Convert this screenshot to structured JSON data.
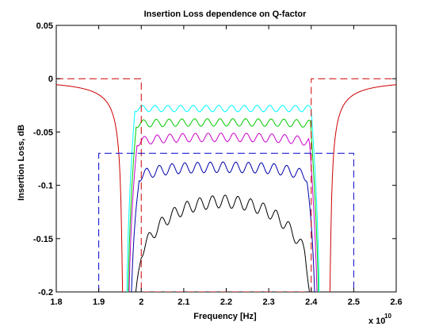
{
  "chart_data": {
    "type": "line",
    "title": "Insertion Loss dependence on Q-factor",
    "xlabel": "Frequency [Hz]",
    "ylabel": "Insertion Loss, dB",
    "x_multiplier": "x 10",
    "x_multiplier_exp": "10",
    "xlim": [
      1.8,
      2.6
    ],
    "ylim": [
      -0.2,
      0.05
    ],
    "x_ticks": [
      "1.8",
      "1.9",
      "2",
      "2.1",
      "2.2",
      "2.3",
      "2.4",
      "2.5",
      "2.6"
    ],
    "y_ticks": [
      "0.05",
      "0",
      "-0.05",
      "-0.1",
      "-0.15",
      "-0.2"
    ],
    "grid": false,
    "legend": "none",
    "series": [
      {
        "color": "#00ffff",
        "style": "solid",
        "passband_center": -0.028,
        "ripple_amp": 0.003,
        "edge_drop": 0.0,
        "edges": [
          1.965,
          2.42
        ]
      },
      {
        "color": "#00cc00",
        "style": "solid",
        "passband_center": -0.041,
        "ripple_amp": 0.0035,
        "edge_drop": 0.002,
        "edges": [
          1.968,
          2.418
        ]
      },
      {
        "color": "#cc00cc",
        "style": "solid",
        "passband_center": -0.055,
        "ripple_amp": 0.004,
        "edge_drop": 0.006,
        "edges": [
          1.97,
          2.415
        ]
      },
      {
        "color": "#0000aa",
        "style": "solid",
        "passband_center": -0.083,
        "ripple_amp": 0.005,
        "edge_drop": 0.012,
        "edges": [
          1.975,
          2.41
        ]
      },
      {
        "color": "#000000",
        "style": "solid",
        "passband_center": -0.135,
        "ripple_amp": 0.006,
        "edge_drop": 0.045,
        "edges": [
          1.98,
          2.405
        ]
      },
      {
        "color": "#cc0000",
        "style": "solid",
        "kind": "stopband",
        "edges": [
          1.96,
          2.44
        ]
      },
      {
        "color": "#cc0000",
        "style": "dashed",
        "kind": "mask",
        "points": [
          [
            1.8,
            0.0
          ],
          [
            2.0,
            0.0
          ],
          [
            2.0,
            -0.2
          ],
          [
            2.4,
            -0.2
          ],
          [
            2.4,
            0.0
          ],
          [
            2.6,
            0.0
          ]
        ]
      },
      {
        "color": "#0000cc",
        "style": "dashed",
        "kind": "mask",
        "points": [
          [
            1.9,
            -0.2
          ],
          [
            1.9,
            -0.07
          ],
          [
            2.5,
            -0.07
          ],
          [
            2.5,
            -0.2
          ]
        ]
      }
    ]
  }
}
